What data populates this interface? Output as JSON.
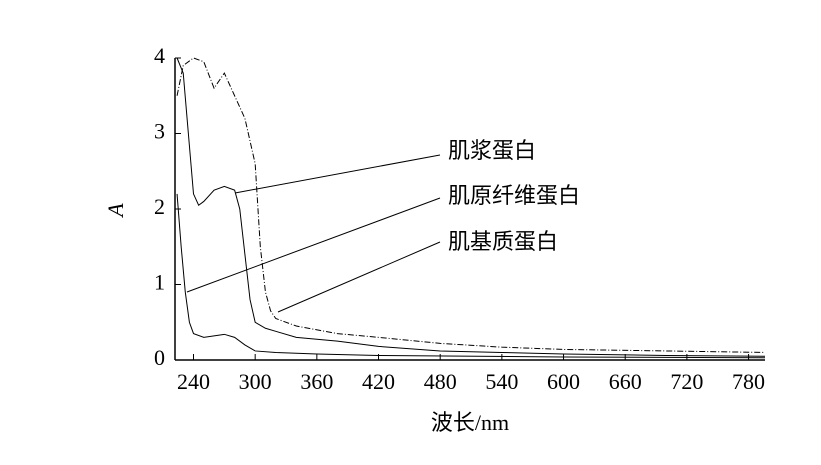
{
  "chart_data": {
    "type": "line",
    "x_label": "波长/nm",
    "y_label": "A",
    "xlim": [
      222,
      796
    ],
    "ylim": [
      0,
      4
    ],
    "xticks": [
      240,
      300,
      360,
      420,
      480,
      540,
      600,
      660,
      720,
      780
    ],
    "yticks": [
      0,
      1,
      2,
      3,
      4
    ],
    "series": [
      {
        "name": "肌浆蛋白",
        "color": "#000000",
        "style": "solid",
        "x": [
          224,
          230,
          235,
          240,
          245,
          250,
          260,
          270,
          280,
          285,
          290,
          295,
          300,
          310,
          320,
          340,
          380,
          420,
          480,
          540,
          600,
          700,
          796
        ],
        "values": [
          4,
          3.8,
          3.0,
          2.2,
          2.05,
          2.1,
          2.25,
          2.3,
          2.25,
          2.0,
          1.4,
          0.8,
          0.5,
          0.42,
          0.38,
          0.3,
          0.25,
          0.18,
          0.12,
          0.1,
          0.08,
          0.06,
          0.05
        ]
      },
      {
        "name": "肌原纤维蛋白",
        "color": "#000000",
        "style": "solid",
        "x": [
          224,
          228,
          232,
          236,
          240,
          250,
          260,
          270,
          280,
          290,
          300,
          320,
          360,
          420,
          600,
          796
        ],
        "values": [
          2.2,
          1.5,
          0.9,
          0.5,
          0.35,
          0.3,
          0.32,
          0.34,
          0.3,
          0.2,
          0.12,
          0.1,
          0.08,
          0.06,
          0.04,
          0.03
        ]
      },
      {
        "name": "肌基质蛋白",
        "color": "#000000",
        "style": "dashdot",
        "x": [
          224,
          230,
          240,
          250,
          260,
          270,
          280,
          290,
          300,
          305,
          310,
          315,
          320,
          340,
          380,
          420,
          480,
          540,
          600,
          700,
          796
        ],
        "values": [
          3.5,
          3.9,
          4.0,
          3.95,
          3.6,
          3.8,
          3.5,
          3.2,
          2.6,
          1.5,
          0.9,
          0.65,
          0.55,
          0.45,
          0.35,
          0.3,
          0.22,
          0.17,
          0.14,
          0.12,
          0.1
        ]
      }
    ]
  }
}
